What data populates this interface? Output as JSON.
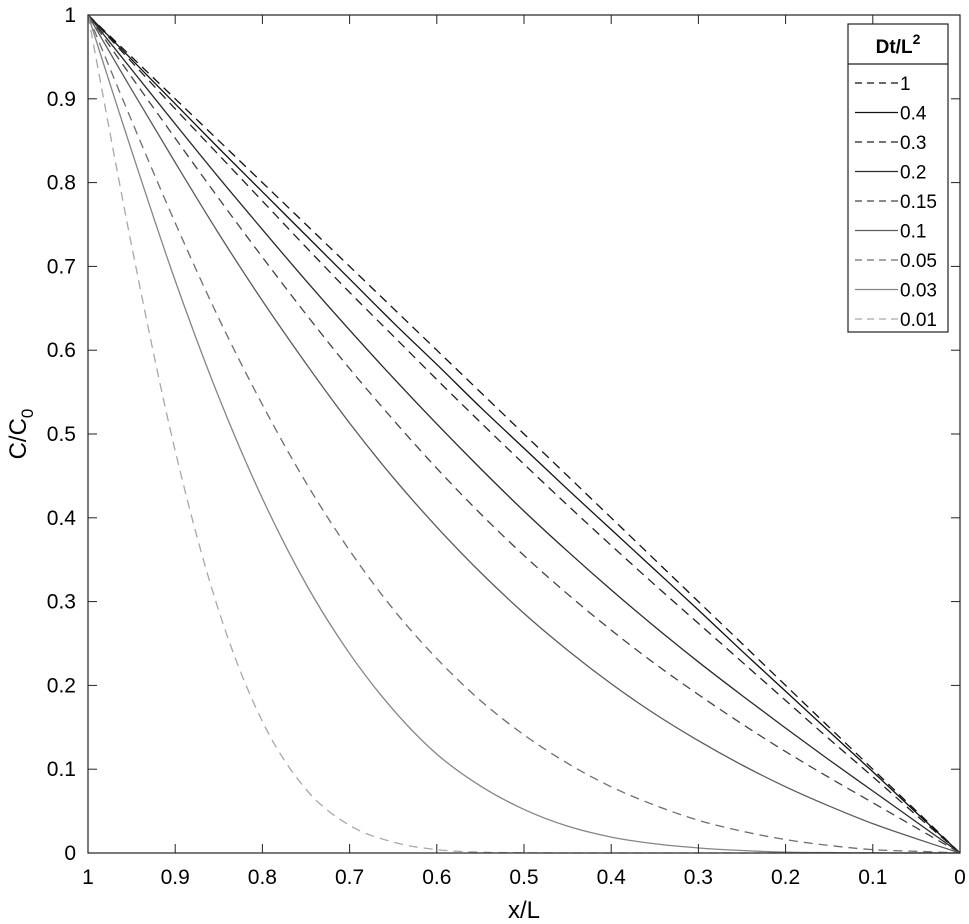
{
  "chart_data": {
    "type": "line",
    "xlabel": "x/L",
    "ylabel_main": "C/C",
    "ylabel_sub": "0",
    "xlim": [
      1,
      0
    ],
    "ylim": [
      0,
      1
    ],
    "x_reversed": true,
    "grid": false,
    "x_ticks": [
      1,
      0.9,
      0.8,
      0.7,
      0.6,
      0.5,
      0.4,
      0.3,
      0.2,
      0.1,
      0
    ],
    "x_tick_labels": [
      "1",
      "0.9",
      "0.8",
      "0.7",
      "0.6",
      "0.5",
      "0.4",
      "0.3",
      "0.2",
      "0.1",
      "0"
    ],
    "y_ticks": [
      0,
      0.1,
      0.2,
      0.3,
      0.4,
      0.5,
      0.6,
      0.7,
      0.8,
      0.9,
      1
    ],
    "y_tick_labels": [
      "0",
      "0.1",
      "0.2",
      "0.3",
      "0.4",
      "0.5",
      "0.6",
      "0.7",
      "0.8",
      "0.9",
      "1"
    ],
    "legend": {
      "title_main": "Dt/L",
      "title_sup": "2",
      "placement": "top-right"
    },
    "x": [
      1,
      0.95,
      0.9,
      0.85,
      0.8,
      0.75,
      0.7,
      0.65,
      0.6,
      0.55,
      0.5,
      0.45,
      0.4,
      0.35,
      0.3,
      0.25,
      0.2,
      0.15,
      0.1,
      0.05,
      0
    ],
    "series": [
      {
        "name": "1",
        "color": "#111111",
        "dash": "dashed",
        "values": [
          1,
          0.95,
          0.9,
          0.85,
          0.8,
          0.75,
          0.7,
          0.65,
          0.6,
          0.55,
          0.5,
          0.45,
          0.4,
          0.35,
          0.3,
          0.25,
          0.2,
          0.15,
          0.1,
          0.05,
          0
        ]
      },
      {
        "name": "0.4",
        "color": "#111111",
        "dash": "solid",
        "values": [
          1,
          0.947,
          0.894,
          0.841,
          0.789,
          0.737,
          0.685,
          0.633,
          0.583,
          0.532,
          0.483,
          0.434,
          0.386,
          0.338,
          0.29,
          0.241,
          0.193,
          0.145,
          0.097,
          0.048,
          0
        ]
      },
      {
        "name": "0.3",
        "color": "#222222",
        "dash": "dashed",
        "values": [
          1,
          0.944,
          0.888,
          0.833,
          0.778,
          0.723,
          0.669,
          0.617,
          0.565,
          0.514,
          0.464,
          0.415,
          0.367,
          0.32,
          0.274,
          0.228,
          0.182,
          0.136,
          0.091,
          0.045,
          0
        ]
      },
      {
        "name": "0.2",
        "color": "#2a2a2a",
        "dash": "solid",
        "values": [
          1,
          0.935,
          0.87,
          0.806,
          0.744,
          0.683,
          0.624,
          0.567,
          0.512,
          0.459,
          0.408,
          0.36,
          0.314,
          0.27,
          0.228,
          0.188,
          0.149,
          0.111,
          0.074,
          0.037,
          0
        ]
      },
      {
        "name": "0.15",
        "color": "#444444",
        "dash": "dashed",
        "values": [
          1,
          0.926,
          0.853,
          0.781,
          0.711,
          0.643,
          0.578,
          0.517,
          0.459,
          0.405,
          0.355,
          0.309,
          0.266,
          0.226,
          0.189,
          0.154,
          0.121,
          0.09,
          0.06,
          0.03,
          0
        ]
      },
      {
        "name": "0.1",
        "color": "#5a5a5a",
        "dash": "solid",
        "values": [
          1,
          0.911,
          0.824,
          0.739,
          0.659,
          0.584,
          0.513,
          0.448,
          0.389,
          0.335,
          0.286,
          0.242,
          0.202,
          0.166,
          0.134,
          0.105,
          0.079,
          0.056,
          0.035,
          0.017,
          0
        ]
      },
      {
        "name": "0.05",
        "color": "#6e6e6e",
        "dash": "dashed",
        "values": [
          1,
          0.874,
          0.752,
          0.638,
          0.535,
          0.442,
          0.361,
          0.291,
          0.232,
          0.182,
          0.141,
          0.107,
          0.079,
          0.057,
          0.039,
          0.026,
          0.016,
          0.009,
          0.004,
          0.002,
          0
        ]
      },
      {
        "name": "0.03",
        "color": "#858585",
        "dash": "solid",
        "values": [
          1,
          0.838,
          0.683,
          0.544,
          0.423,
          0.321,
          0.238,
          0.171,
          0.118,
          0.08,
          0.052,
          0.032,
          0.019,
          0.011,
          0.006,
          0.003,
          0.001,
          0.0005,
          0.0002,
          0.0001,
          0
        ]
      },
      {
        "name": "0.01",
        "color": "#a8a8a8",
        "dash": "dashed",
        "values": [
          1,
          0.725,
          0.48,
          0.289,
          0.157,
          0.076,
          0.033,
          0.013,
          0.004,
          0.001,
          0.0003,
          0,
          0,
          0,
          0,
          0,
          0,
          0,
          0,
          0,
          0
        ]
      }
    ]
  }
}
